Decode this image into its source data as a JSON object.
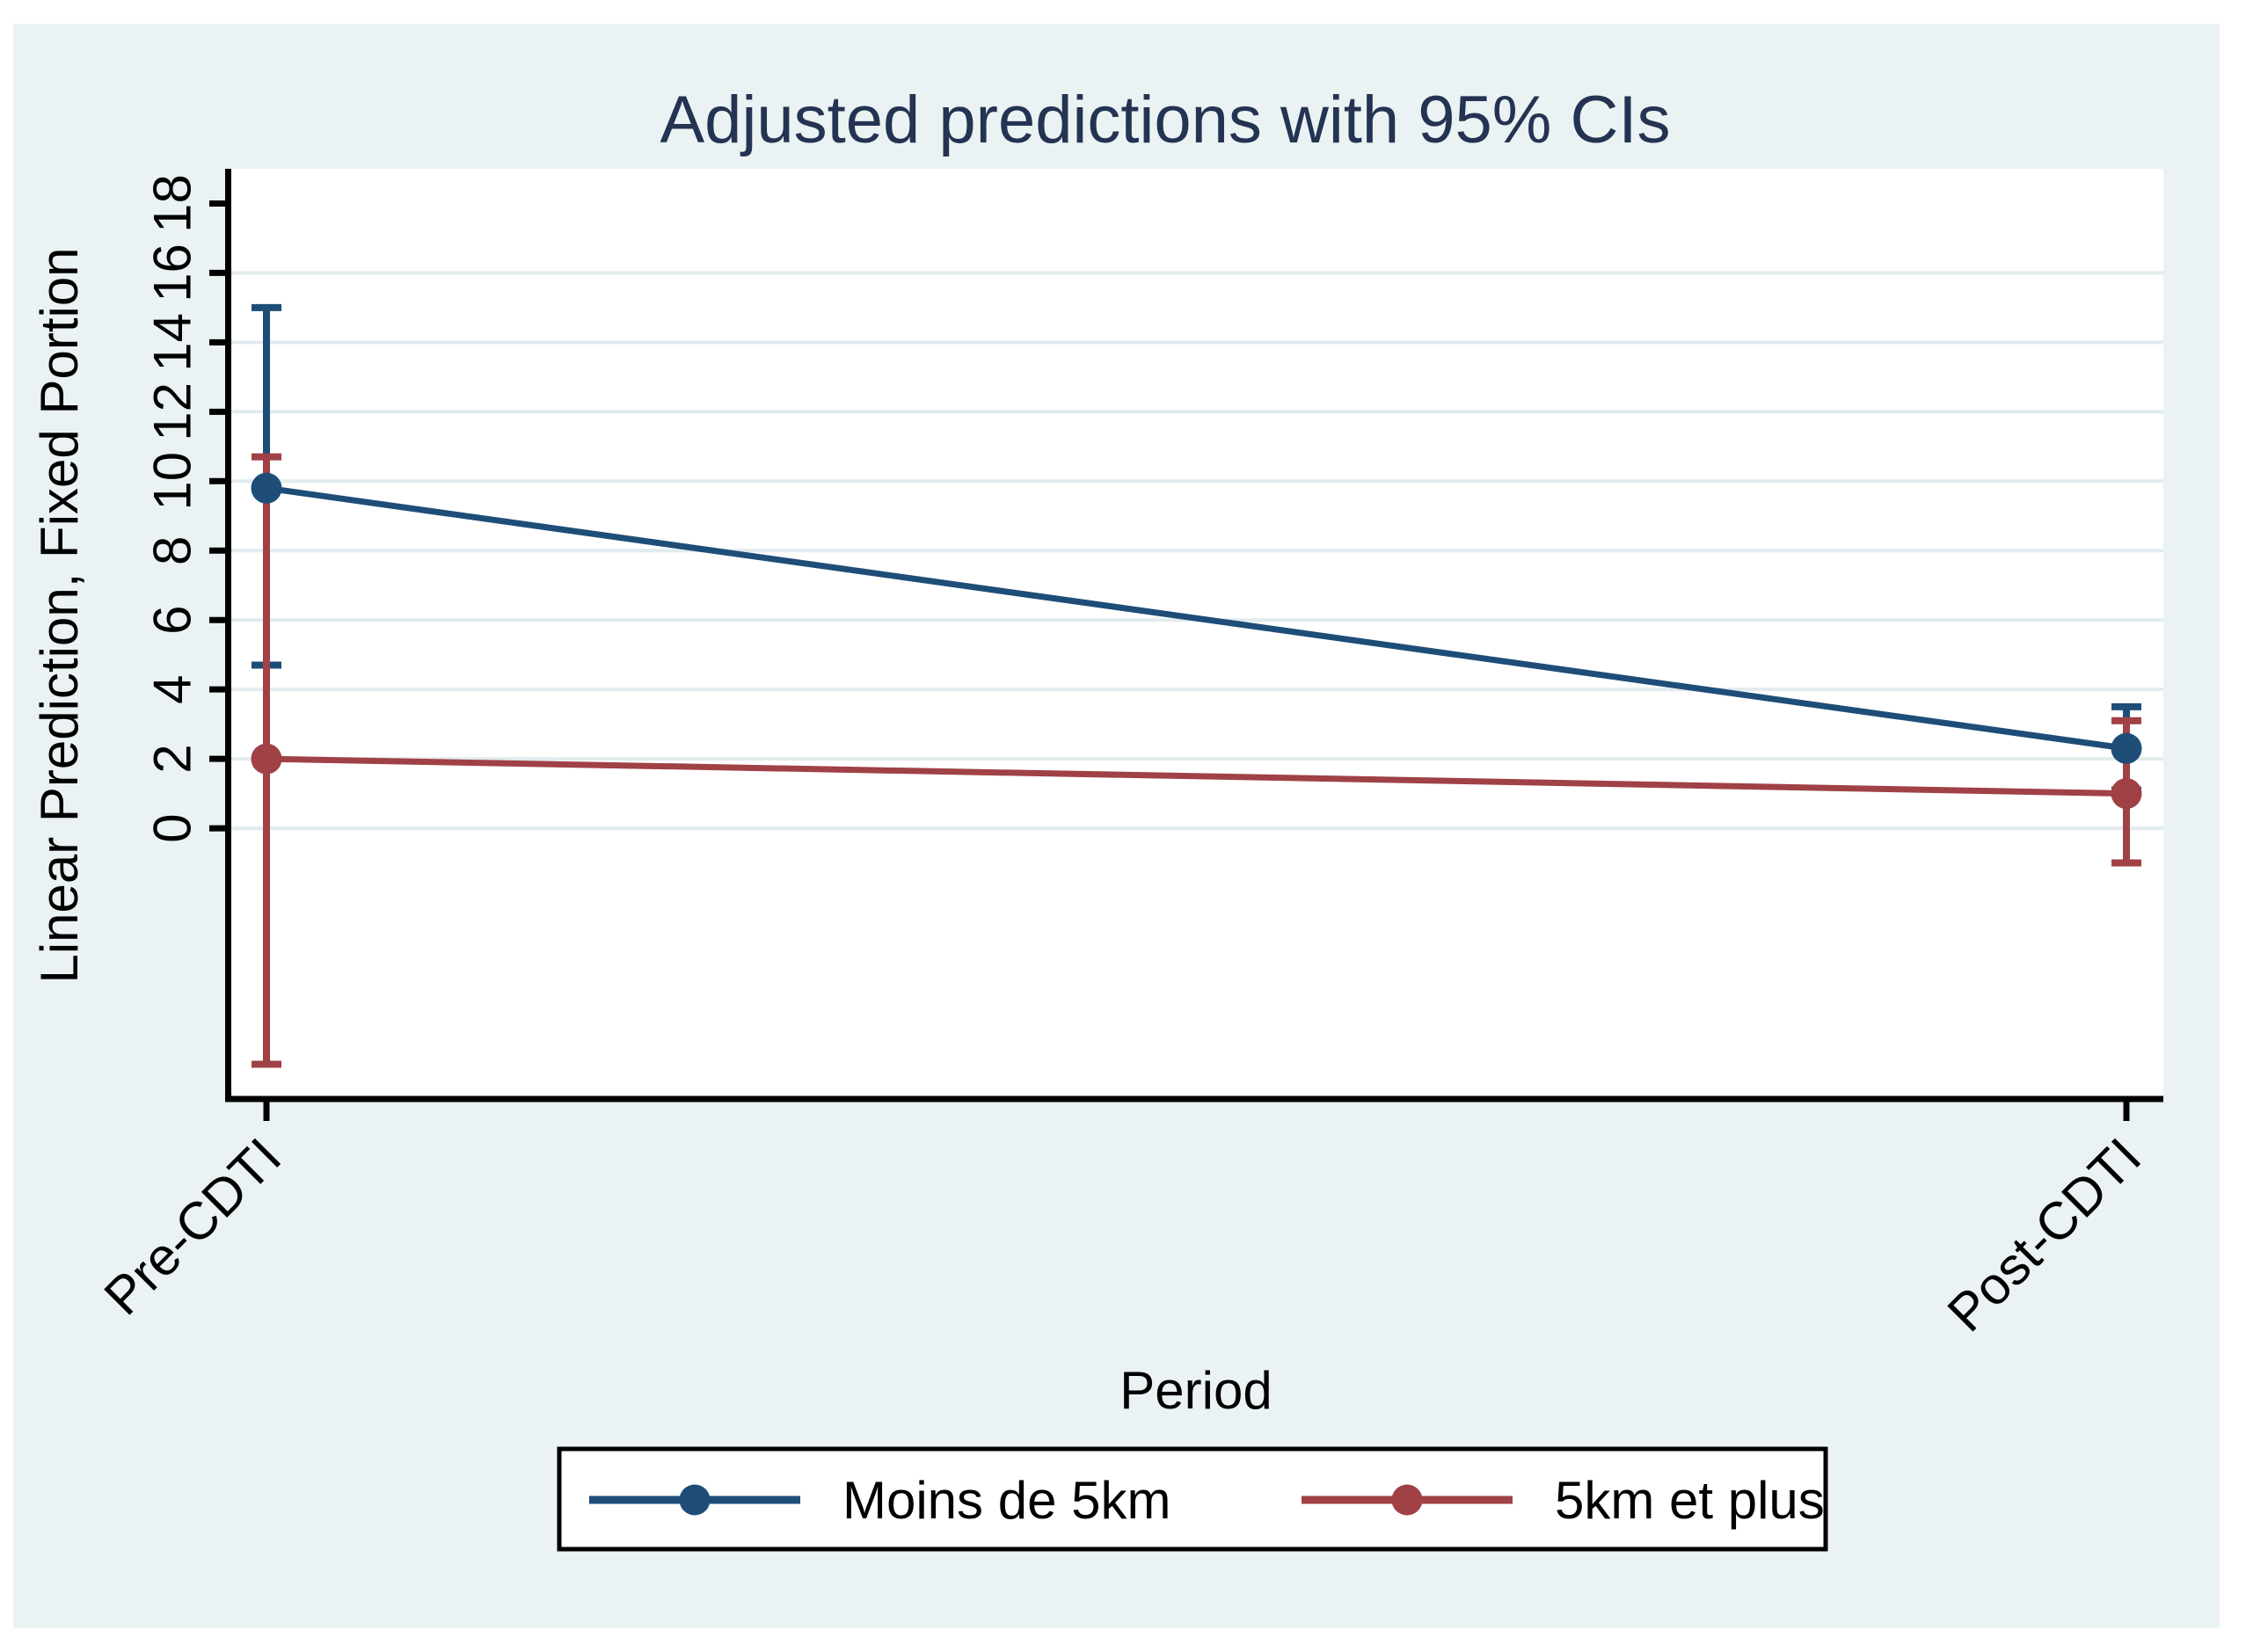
{
  "figure": {
    "title": "Adjusted predictions with 95% CIs",
    "colors": {
      "canvas_background": "#EAF2F3",
      "plot_background": "#FFFFFF",
      "gridline": "#E2EBEE",
      "axis": "#000000",
      "title_text": "#243352",
      "tick_text": "#000000",
      "legend_border": "#000000",
      "legend_background": "#FFFFFF"
    }
  },
  "chart_data": {
    "type": "line",
    "title": "Adjusted predictions with 95% CIs",
    "xlabel": "Period",
    "ylabel": "Linear Prediction, Fixed Portion",
    "categories": [
      "Pre-CDTI",
      "Post-CDTI"
    ],
    "y_ticks": [
      0,
      2,
      4,
      6,
      8,
      10,
      12,
      14,
      16,
      18
    ],
    "gridlines_at": [
      0,
      2,
      4,
      6,
      8,
      10,
      12,
      14,
      16
    ],
    "ylim": [
      -7.8,
      19.0
    ],
    "grid": true,
    "legend_position": "bottom",
    "error_bars": "95% CI",
    "series": [
      {
        "name": "Moins de 5km",
        "color": "#1E4D78",
        "values": [
          9.8,
          2.3
        ],
        "ci_low": [
          4.7,
          1.1
        ],
        "ci_high": [
          15.0,
          3.5
        ]
      },
      {
        "name": "5km et plus",
        "color": "#A04146",
        "values": [
          2.0,
          1.0
        ],
        "ci_low": [
          -6.8,
          -1.0
        ],
        "ci_high": [
          10.7,
          3.1
        ]
      }
    ]
  }
}
